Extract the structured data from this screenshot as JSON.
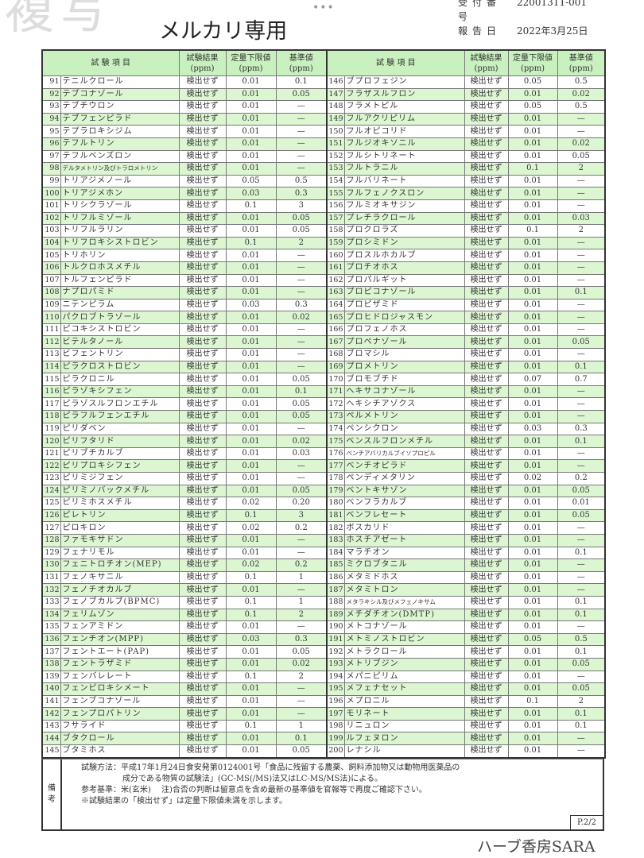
{
  "watermark_top": "複写",
  "header": {
    "reception_label": "受付番号",
    "reception_no": "22001311-001",
    "report_date_label": "報告日",
    "report_date": "2022年3月25日"
  },
  "table": {
    "headers": {
      "item": "試 験 項 目",
      "result": "試験結果",
      "loq": "定量下限値",
      "standard": "基準値",
      "unit": "(ppm)"
    },
    "left_rows": [
      [
        "91",
        "テニルクロール",
        "検出せず",
        "0.01",
        "0.1"
      ],
      [
        "92",
        "テブコナゾール",
        "検出せず",
        "0.01",
        "0.05"
      ],
      [
        "93",
        "テブチウロン",
        "検出せず",
        "0.01",
        "—"
      ],
      [
        "94",
        "テブフェンピラド",
        "検出せず",
        "0.01",
        "—"
      ],
      [
        "95",
        "テプラロキシジム",
        "検出せず",
        "0.01",
        "—"
      ],
      [
        "96",
        "テフルトリン",
        "検出せず",
        "0.01",
        "—"
      ],
      [
        "97",
        "テフルベンズロン",
        "検出せず",
        "0.01",
        "—"
      ],
      [
        "98",
        "デルタメトリン及びトラロメトリン",
        "検出せず",
        "0.01",
        "—"
      ],
      [
        "99",
        "トリアジメノール",
        "検出せず",
        "0.05",
        "0.5"
      ],
      [
        "100",
        "トリアジメホン",
        "検出せず",
        "0.03",
        "0.3"
      ],
      [
        "101",
        "トリシクラゾール",
        "検出せず",
        "0.1",
        "3"
      ],
      [
        "102",
        "トリフルミゾール",
        "検出せず",
        "0.01",
        "0.05"
      ],
      [
        "103",
        "トリフルラリン",
        "検出せず",
        "0.01",
        "0.05"
      ],
      [
        "104",
        "トリフロキシストロビン",
        "検出せず",
        "0.1",
        "2"
      ],
      [
        "105",
        "トリホリン",
        "検出せず",
        "0.01",
        "—"
      ],
      [
        "106",
        "トルクロホスメチル",
        "検出せず",
        "0.01",
        "—"
      ],
      [
        "107",
        "トルフェンピラド",
        "検出せず",
        "0.01",
        "—"
      ],
      [
        "108",
        "ナプロパミド",
        "検出せず",
        "0.01",
        "—"
      ],
      [
        "109",
        "ニテンピラム",
        "検出せず",
        "0.03",
        "0.3"
      ],
      [
        "110",
        "パクロブトラゾール",
        "検出せず",
        "0.01",
        "0.02"
      ],
      [
        "111",
        "ピコキシストロビン",
        "検出せず",
        "0.01",
        "—"
      ],
      [
        "112",
        "ビテルタノール",
        "検出せず",
        "0.01",
        "—"
      ],
      [
        "113",
        "ビフェントリン",
        "検出せず",
        "0.01",
        "—"
      ],
      [
        "114",
        "ピラクロストロビン",
        "検出せず",
        "0.01",
        "—"
      ],
      [
        "115",
        "ピラクロニル",
        "検出せず",
        "0.01",
        "0.05"
      ],
      [
        "116",
        "ピラゾキシフェン",
        "検出せず",
        "0.01",
        "0.1"
      ],
      [
        "117",
        "ピラゾスルフロンエチル",
        "検出せず",
        "0.01",
        "0.05"
      ],
      [
        "118",
        "ピラフルフェンエチル",
        "検出せず",
        "0.01",
        "0.05"
      ],
      [
        "119",
        "ピリダベン",
        "検出せず",
        "0.01",
        "—"
      ],
      [
        "120",
        "ピリフタリド",
        "検出せず",
        "0.01",
        "0.02"
      ],
      [
        "121",
        "ピリブチカルブ",
        "検出せず",
        "0.01",
        "0.03"
      ],
      [
        "122",
        "ピリプロキシフェン",
        "検出せず",
        "0.01",
        "—"
      ],
      [
        "123",
        "ピリミジフェン",
        "検出せず",
        "0.01",
        "—"
      ],
      [
        "124",
        "ピリミノバックメチル",
        "検出せず",
        "0.01",
        "0.05"
      ],
      [
        "125",
        "ピリミホスメチル",
        "検出せず",
        "0.02",
        "0.20"
      ],
      [
        "126",
        "ピレトリン",
        "検出せず",
        "0.1",
        "3"
      ],
      [
        "127",
        "ピロキロン",
        "検出せず",
        "0.02",
        "0.2"
      ],
      [
        "128",
        "ファモキサドン",
        "検出せず",
        "0.01",
        "—"
      ],
      [
        "129",
        "フェナリモル",
        "検出せず",
        "0.01",
        "—"
      ],
      [
        "130",
        "フェニトロチオン(MEP)",
        "検出せず",
        "0.02",
        "0.2"
      ],
      [
        "131",
        "フェノキサニル",
        "検出せず",
        "0.1",
        "1"
      ],
      [
        "132",
        "フェノチオカルブ",
        "検出せず",
        "0.01",
        "—"
      ],
      [
        "133",
        "フェノブカルブ(BPMC)",
        "検出せず",
        "0.1",
        "1"
      ],
      [
        "134",
        "フェリムゾン",
        "検出せず",
        "0.1",
        "2"
      ],
      [
        "135",
        "フェンアミドン",
        "検出せず",
        "0.01",
        "—"
      ],
      [
        "136",
        "フェンチオン(MPP)",
        "検出せず",
        "0.03",
        "0.3"
      ],
      [
        "137",
        "フェントエート(PAP)",
        "検出せず",
        "0.01",
        "0.05"
      ],
      [
        "138",
        "フェントラザミド",
        "検出せず",
        "0.01",
        "0.02"
      ],
      [
        "139",
        "フェンバレレート",
        "検出せず",
        "0.1",
        "2"
      ],
      [
        "140",
        "フェンピロキシメート",
        "検出せず",
        "0.01",
        "—"
      ],
      [
        "141",
        "フェンブコナゾール",
        "検出せず",
        "0.01",
        "—"
      ],
      [
        "142",
        "フェンプロパトリン",
        "検出せず",
        "0.01",
        "—"
      ],
      [
        "143",
        "フサライド",
        "検出せず",
        "0.1",
        "1"
      ],
      [
        "144",
        "ブタクロール",
        "検出せず",
        "0.01",
        "0.1"
      ],
      [
        "145",
        "ブタミホス",
        "検出せず",
        "0.01",
        "0.05"
      ]
    ],
    "right_rows": [
      [
        "146",
        "ブプロフェジン",
        "検出せず",
        "0.05",
        "0.5"
      ],
      [
        "147",
        "フラザスルフロン",
        "検出せず",
        "0.01",
        "0.02"
      ],
      [
        "148",
        "フラメトピル",
        "検出せず",
        "0.05",
        "0.5"
      ],
      [
        "149",
        "フルアクリピリム",
        "検出せず",
        "0.01",
        "—"
      ],
      [
        "150",
        "フルオピコリド",
        "検出せず",
        "0.01",
        "—"
      ],
      [
        "151",
        "フルジオキソニル",
        "検出せず",
        "0.01",
        "0.02"
      ],
      [
        "152",
        "フルシトリネート",
        "検出せず",
        "0.01",
        "0.05"
      ],
      [
        "153",
        "フルトラニル",
        "検出せず",
        "0.1",
        "2"
      ],
      [
        "154",
        "フルバリネート",
        "検出せず",
        "0.01",
        "—"
      ],
      [
        "155",
        "フルフェノクスロン",
        "検出せず",
        "0.01",
        "—"
      ],
      [
        "156",
        "フルミオキサジン",
        "検出せず",
        "0.01",
        "—"
      ],
      [
        "157",
        "プレチラクロール",
        "検出せず",
        "0.01",
        "0.03"
      ],
      [
        "158",
        "プロクロラズ",
        "検出せず",
        "0.1",
        "2"
      ],
      [
        "159",
        "プロシミドン",
        "検出せず",
        "0.01",
        "—"
      ],
      [
        "160",
        "プロスルホカルブ",
        "検出せず",
        "0.01",
        "—"
      ],
      [
        "161",
        "プロチオホス",
        "検出せず",
        "0.01",
        "—"
      ],
      [
        "162",
        "プロパルギット",
        "検出せず",
        "0.01",
        "—"
      ],
      [
        "163",
        "プロピコナゾール",
        "検出せず",
        "0.01",
        "0.1"
      ],
      [
        "164",
        "プロピザミド",
        "検出せず",
        "0.01",
        "—"
      ],
      [
        "165",
        "プロヒドロジャスモン",
        "検出せず",
        "0.01",
        "—"
      ],
      [
        "166",
        "プロフェノホス",
        "検出せず",
        "0.01",
        "—"
      ],
      [
        "167",
        "プロペナゾール",
        "検出せず",
        "0.01",
        "0.05"
      ],
      [
        "168",
        "ブロマシル",
        "検出せず",
        "0.01",
        "—"
      ],
      [
        "169",
        "プロメトリン",
        "検出せず",
        "0.01",
        "0.1"
      ],
      [
        "170",
        "ブロモブチド",
        "検出せず",
        "0.07",
        "0.7"
      ],
      [
        "171",
        "ヘキサコナゾール",
        "検出せず",
        "0.01",
        "—"
      ],
      [
        "172",
        "ヘキシチアゾクス",
        "検出せず",
        "0.01",
        "—"
      ],
      [
        "173",
        "ペルメトリン",
        "検出せず",
        "0.01",
        "—"
      ],
      [
        "174",
        "ペンシクロン",
        "検出せず",
        "0.03",
        "0.3"
      ],
      [
        "175",
        "ベンスルフロンメチル",
        "検出せず",
        "0.01",
        "0.1"
      ],
      [
        "176",
        "ベンチアバリカルブイソプロピル",
        "検出せず",
        "0.01",
        "—"
      ],
      [
        "177",
        "ベンチオピラド",
        "検出せず",
        "0.01",
        "—"
      ],
      [
        "178",
        "ペンディメタリン",
        "検出せず",
        "0.02",
        "0.2"
      ],
      [
        "179",
        "ベントキサゾン",
        "検出せず",
        "0.01",
        "0.05"
      ],
      [
        "180",
        "ベンフラカルブ",
        "検出せず",
        "0.01",
        "0.01"
      ],
      [
        "181",
        "ベンフレセート",
        "検出せず",
        "0.01",
        "0.05"
      ],
      [
        "182",
        "ボスカリド",
        "検出せず",
        "0.01",
        "—"
      ],
      [
        "183",
        "ホスチアゼート",
        "検出せず",
        "0.01",
        "—"
      ],
      [
        "184",
        "マラチオン",
        "検出せず",
        "0.01",
        "0.1"
      ],
      [
        "185",
        "ミクロブタニル",
        "検出せず",
        "0.01",
        "—"
      ],
      [
        "186",
        "メタミドホス",
        "検出せず",
        "0.01",
        "—"
      ],
      [
        "187",
        "メタミトロン",
        "検出せず",
        "0.01",
        "—"
      ],
      [
        "188",
        "メタラキシル及びメフェノキサム",
        "検出せず",
        "0.01",
        "0.1"
      ],
      [
        "189",
        "メチダチオン(DMTP)",
        "検出せず",
        "0.01",
        "0.1"
      ],
      [
        "190",
        "メトコナゾール",
        "検出せず",
        "0.01",
        "—"
      ],
      [
        "191",
        "メトミノストロビン",
        "検出せず",
        "0.05",
        "0.5"
      ],
      [
        "192",
        "メトラクロール",
        "検出せず",
        "0.01",
        "0.1"
      ],
      [
        "193",
        "メトリブジン",
        "検出せず",
        "0.01",
        "0.05"
      ],
      [
        "194",
        "メパニピリム",
        "検出せず",
        "0.01",
        "—"
      ],
      [
        "195",
        "メフェナセット",
        "検出せず",
        "0.01",
        "0.05"
      ],
      [
        "196",
        "メプロニル",
        "検出せず",
        "0.1",
        "2"
      ],
      [
        "197",
        "モリネート",
        "検出せず",
        "0.01",
        "0.1"
      ],
      [
        "198",
        "リニュロン",
        "検出せず",
        "0.01",
        "0.1"
      ],
      [
        "199",
        "ルフェヌロン",
        "検出せず",
        "0.01",
        "—"
      ],
      [
        "200",
        "レナシル",
        "検出せず",
        "0.01",
        "—"
      ]
    ]
  },
  "remarks": {
    "label_1": "備",
    "label_2": "考",
    "line1": "試験方法：平成17年1月24日食安発第0124001号「食品に残留する農薬、飼料添加物又は動物用医薬品の",
    "line2": "成分である物質の試験法」(GC-MS(/MS)法又はLC-MS/MS法)による。",
    "line3": "参考基準：米(玄米)　 注)合否の判断は留意点を含め最新の基準値を官報等で再度ご確認下さい。",
    "line4": "※試験結果の「検出せず」は定量下限値未満を示します。",
    "page": "P.2/2"
  },
  "overlay": {
    "mercari": "メルカリ専用",
    "shop": "ハーブ香房SARA"
  }
}
